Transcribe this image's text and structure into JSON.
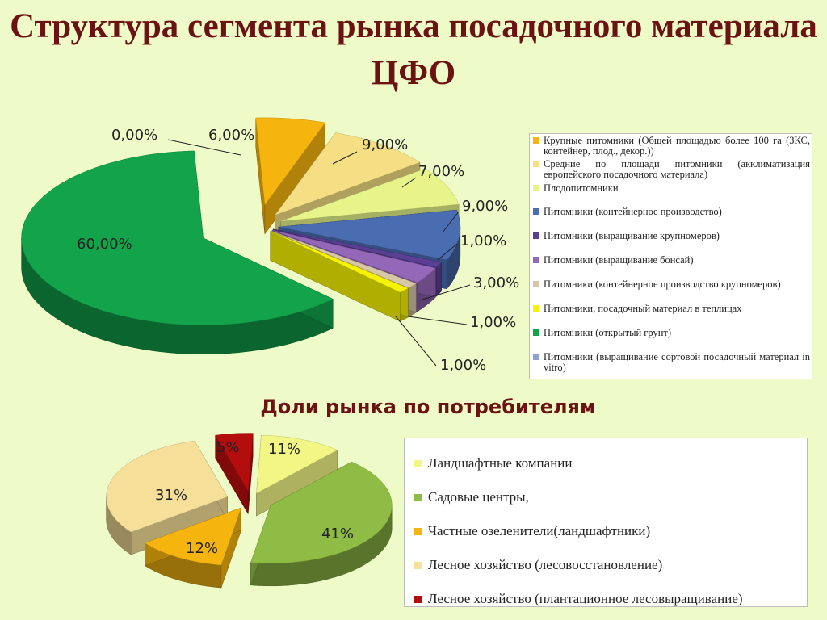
{
  "title": "Структура сегмента рынка посадочного материала ЦФО",
  "chart_data": [
    {
      "type": "pie",
      "title": "",
      "categories": [
        "Крупные питомники (Общей площадью более 100 га (ЗКС, контейнер, плод., декор.))",
        "Средние по площади питомники (акклиматизация европейского посадочного материала)",
        "Плодопитомники",
        "Питомники (контейнерное производство)",
        "Питомники (выращивание крупномеров)",
        "Питомники (выращивание бонсай)",
        "Питомники (контейнерное производство крупномеров)",
        "Питомники, посадочный материал в теплицах",
        "Питомники (открытый грунт)",
        "Питомники (выращивание сортовой посадочный материал in vitro)"
      ],
      "values": [
        6,
        9,
        7,
        9,
        1,
        3,
        1,
        1,
        60,
        0
      ],
      "labels": [
        "6,00%",
        "9,00%",
        "7,00%",
        "9,00%",
        "1,00%",
        "3,00%",
        "1,00%",
        "1,00%",
        "60,00%",
        "0,00%"
      ],
      "colors": [
        "#f5b40e",
        "#f5de83",
        "#e6f48a",
        "#4a6cb0",
        "#5b3f94",
        "#9467b9",
        "#d8c7a5",
        "#f5f202",
        "#12a34b",
        "#8aa3d2"
      ]
    },
    {
      "type": "pie",
      "title": "Доли рынка по потребителям",
      "categories": [
        "Ландшафтные компании",
        "Садовые центры,",
        "Частные озеленители(ландшафтники)",
        "Лесное хозяйство (лесовосстановление)",
        "Лесное хозяйство (плантационное лесовыращивание)"
      ],
      "values": [
        11,
        41,
        12,
        31,
        5
      ],
      "labels": [
        "11%",
        "41%",
        "12%",
        "31%",
        "5%"
      ],
      "colors": [
        "#f2f685",
        "#8fbc45",
        "#f5b40e",
        "#f6df98",
        "#b40d0d"
      ]
    }
  ]
}
